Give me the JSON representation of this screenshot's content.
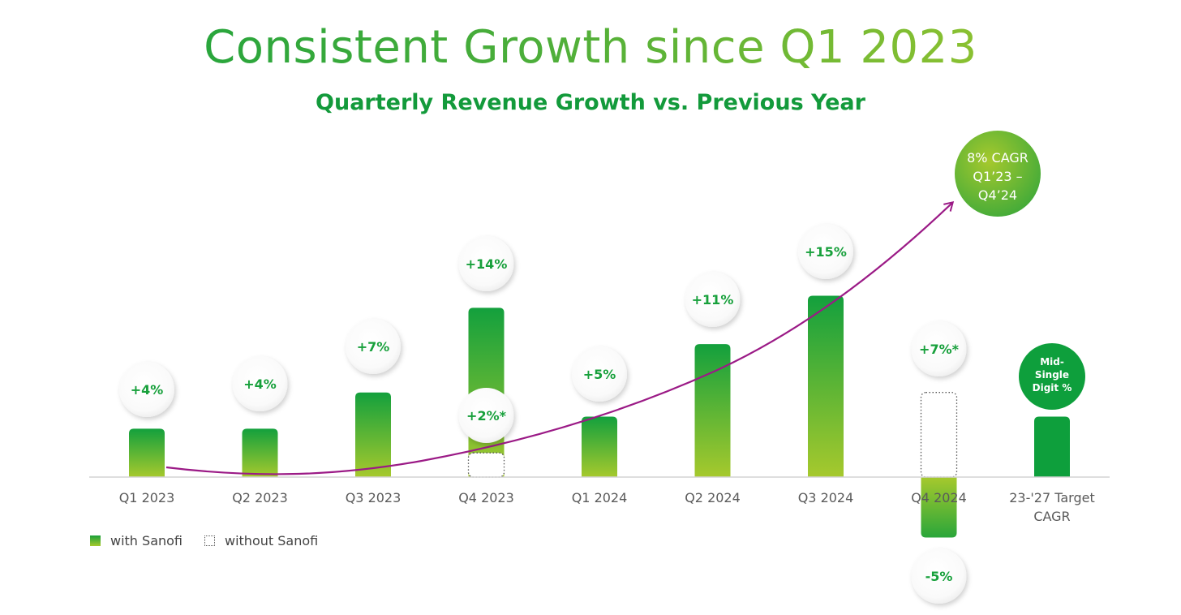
{
  "title": "Consistent Growth since Q1 2023",
  "subtitle": "Quarterly Revenue Growth vs. Previous Year",
  "legend": {
    "with": "with Sanofi",
    "without": "without Sanofi"
  },
  "cagr_label": [
    "8% CAGR",
    "Q1’23 –",
    "Q4’24"
  ],
  "colors": {
    "green_dark": "#13a03d",
    "green_light": "#a6c92d",
    "trend": "#9b1a86",
    "target": "#0e9f3c",
    "axis": "#d4d4d4"
  },
  "chart_data": {
    "type": "bar",
    "title": "Quarterly Revenue Growth vs. Previous Year",
    "unit": "%",
    "categories": [
      "Q1 2023",
      "Q2 2023",
      "Q3 2023",
      "Q4 2023",
      "Q1 2024",
      "Q2 2024",
      "Q3 2024",
      "Q4 2024",
      "23-'27 Target CAGR"
    ],
    "series": [
      {
        "name": "with Sanofi",
        "values": [
          4,
          4,
          7,
          14,
          5,
          11,
          15,
          -5,
          null
        ],
        "labels": [
          "+4%",
          "+4%",
          "+7%",
          "+14%",
          "+5%",
          "+11%",
          "+15%",
          "-5%",
          ""
        ]
      },
      {
        "name": "without Sanofi",
        "values": [
          null,
          null,
          null,
          2,
          null,
          null,
          null,
          7,
          null
        ],
        "labels": [
          "",
          "",
          "",
          "+2%*",
          "",
          "",
          "",
          "+7%*",
          ""
        ]
      }
    ],
    "target": {
      "category": "23-'27 Target CAGR",
      "label": [
        "Mid-",
        "Single",
        "Digit %"
      ],
      "approx_value": 5
    },
    "annotation": "8% CAGR Q1’23 – Q4’24",
    "ylim": [
      -5,
      15
    ],
    "grid": false,
    "legend_position": "bottom-left"
  }
}
